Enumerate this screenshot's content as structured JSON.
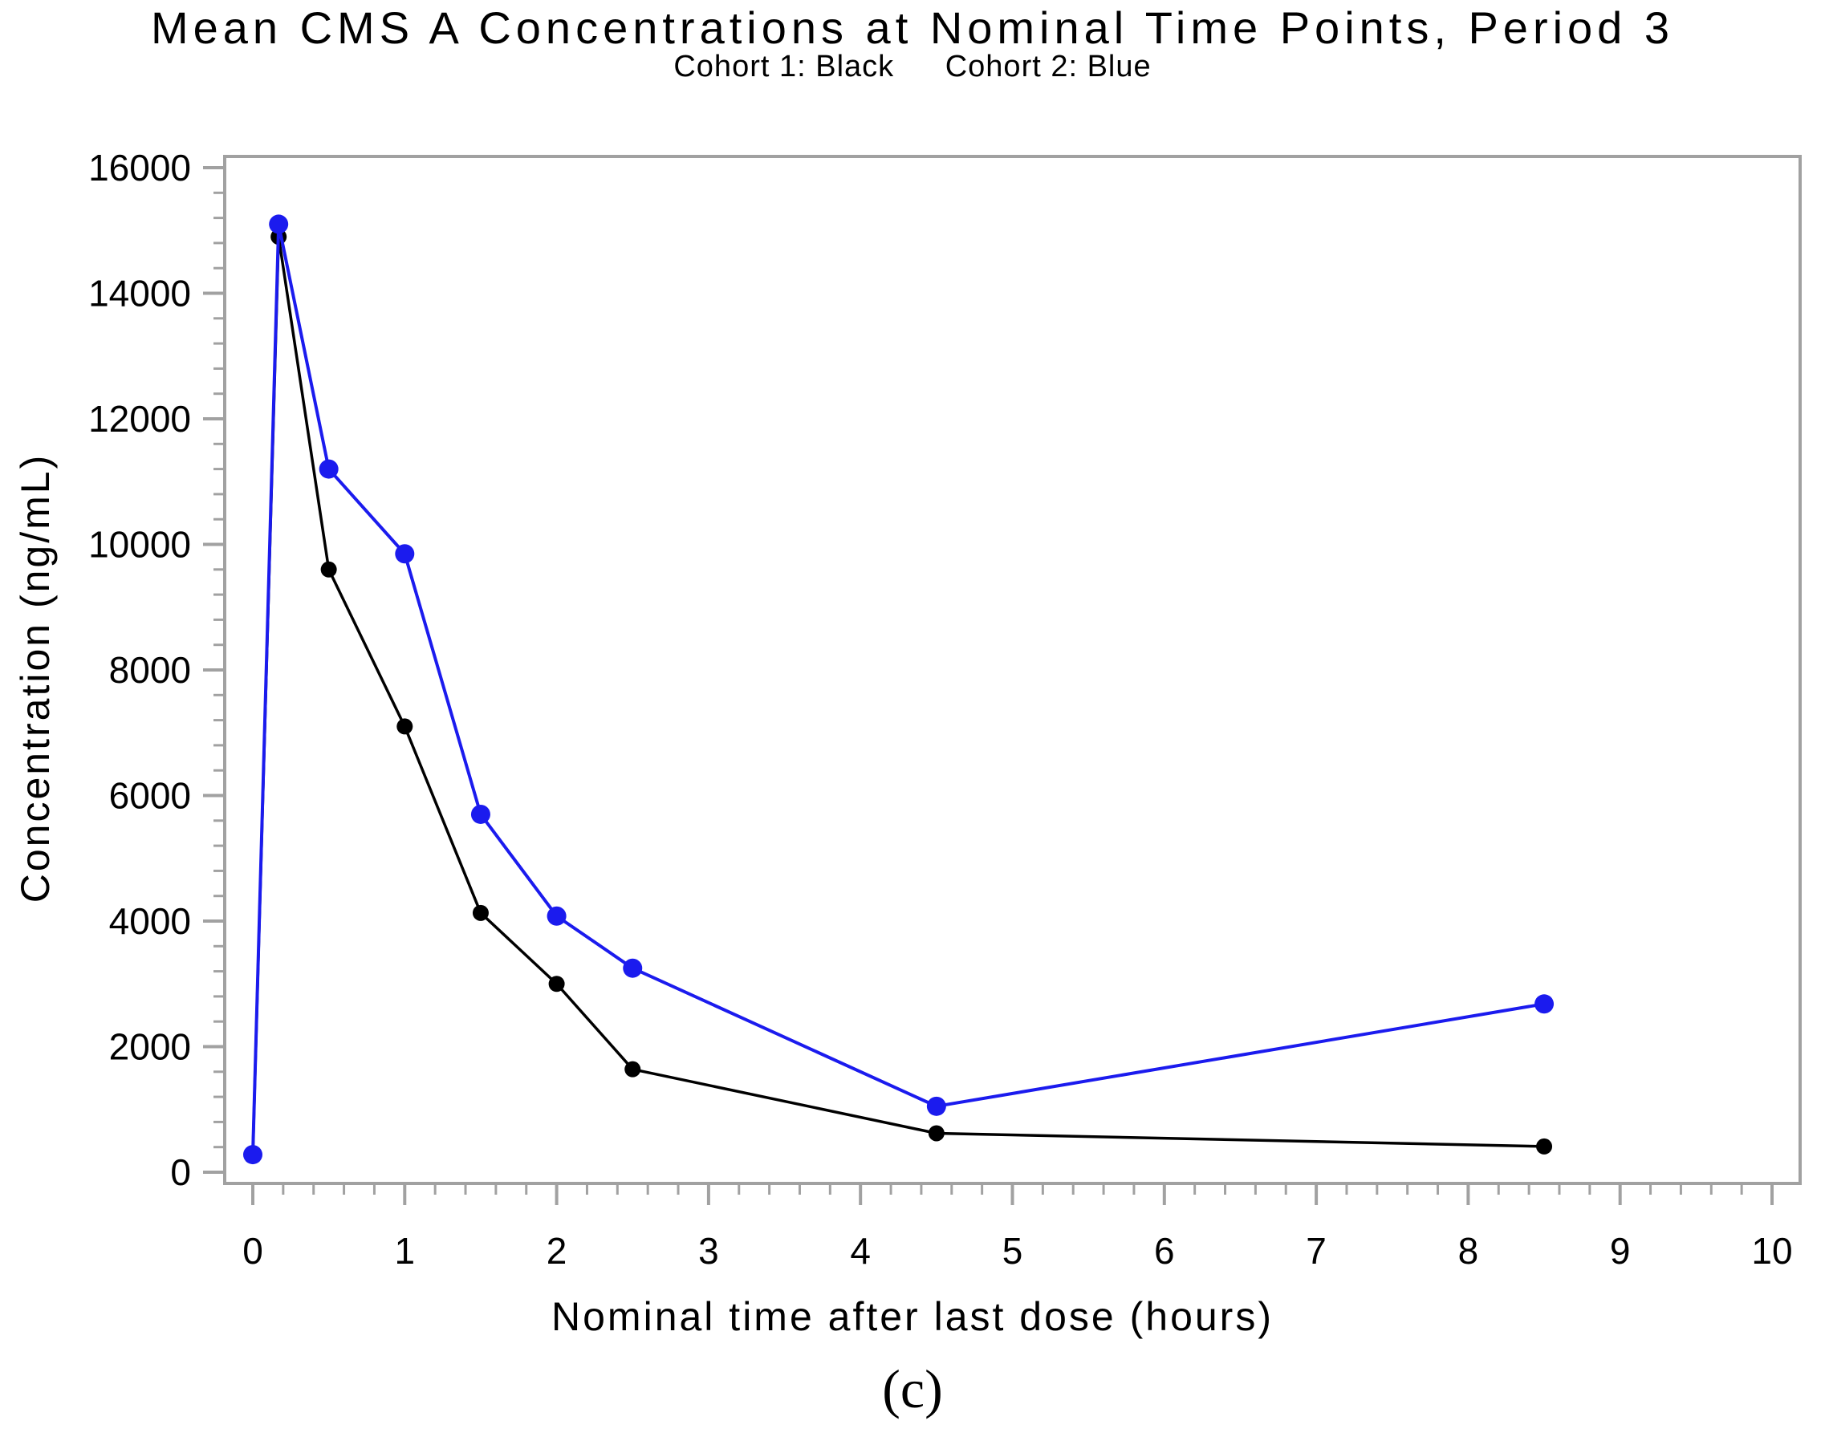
{
  "page": {
    "title": "Mean CMS A Concentrations at Nominal Time Points, Period 3",
    "subtitle": {
      "cohort1": "Cohort 1: Black",
      "cohort2": "Cohort 2: Blue"
    },
    "caption": "(c)"
  },
  "colors": {
    "cohort1": "#000000",
    "cohort2": "#1b1bee",
    "axis": "#a1a1a1",
    "text": "#000000",
    "background": "#ffffff"
  },
  "chart_data": {
    "type": "line",
    "title": "Mean CMS A Concentrations at Nominal Time Points, Period 3",
    "subtitle": "Cohort 1: Black   Cohort 2: Blue",
    "xlabel": "Nominal time after last dose (hours)",
    "ylabel": "Concentration (ng/mL)",
    "xlim": [
      0,
      10
    ],
    "ylim": [
      0,
      16000
    ],
    "xticks": [
      0,
      1,
      2,
      3,
      4,
      5,
      6,
      7,
      8,
      9,
      10
    ],
    "yticks": [
      0,
      2000,
      4000,
      6000,
      8000,
      10000,
      12000,
      14000,
      16000
    ],
    "x_minor_step": 0.2,
    "y_minor_step": 400,
    "grid": false,
    "legend_position": "in-subtitle",
    "axis_color": "#a1a1a1",
    "marker": "circle",
    "series": [
      {
        "name": "Cohort 1",
        "color": "#000000",
        "line_width": 3.5,
        "marker_radius": 10,
        "x": [
          0,
          0.17,
          0.5,
          1,
          1.5,
          2,
          2.5,
          4.5,
          8.5
        ],
        "y": [
          270,
          14900,
          9600,
          7100,
          4130,
          3000,
          1640,
          620,
          410
        ]
      },
      {
        "name": "Cohort 2",
        "color": "#1b1bee",
        "line_width": 4,
        "marker_radius": 12,
        "x": [
          0,
          0.17,
          0.5,
          1,
          1.5,
          2,
          2.5,
          4.5,
          8.5
        ],
        "y": [
          280,
          15100,
          11200,
          9850,
          5700,
          4080,
          3250,
          1050,
          2680
        ]
      }
    ]
  }
}
